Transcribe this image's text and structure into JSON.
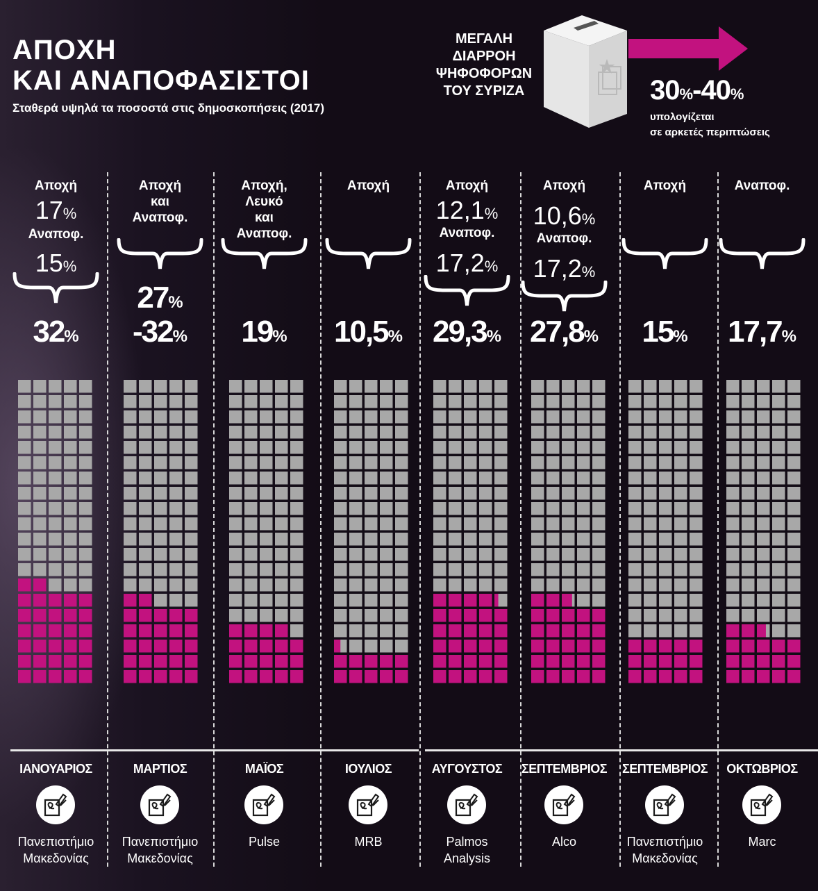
{
  "header": {
    "title_line1": "ΑΠΟΧΗ",
    "title_line2": "ΚΑΙ ΑΝΑΠΟΦΑΣΙΣΤΟΙ",
    "subtitle": "Σταθερά υψηλά τα ποσοστά στις δημοσκοπήσεις (2017)"
  },
  "leak": {
    "line1": "ΜΕΓΑΛΗ",
    "line2": "ΔΙΑΡΡΟΗ",
    "line3": "ΨΗΦΟΦΟΡΩΝ",
    "line4": "ΤΟΥ ΣΥΡΙΖΑ",
    "low": "30",
    "sep": "-",
    "high": "40",
    "pct": "%",
    "note_line1": "υπολογίζεται",
    "note_line2": "σε αρκετές περιπτώσεις"
  },
  "colors": {
    "accent": "#c2127f",
    "empty": "#a8a8a8",
    "background": "#120b14"
  },
  "chart_data": {
    "type": "waffle",
    "cells_per_chart": 100,
    "columns": 5,
    "rows": 20,
    "columns_data": [
      {
        "month": "ΙΑΝΟΥΑΡΙΟΣ",
        "source": [
          "Πανεπιστήμιο",
          "Μακεδονίας"
        ],
        "top": [
          "Αποχή"
        ],
        "sub": [
          {
            "label": "Αποχή",
            "value": "17",
            "pct": "%"
          },
          {
            "label": "Αναποφ.",
            "value": "15",
            "pct": "%"
          }
        ],
        "total_label": "32",
        "value": 32
      },
      {
        "month": "ΜΑΡΤΙΟΣ",
        "source": [
          "Πανεπιστήμιο",
          "Μακεδονίας"
        ],
        "top": [
          "Αποχή",
          "και",
          "Αναποφ."
        ],
        "range_low": "27",
        "total_label": "-32",
        "value": 27
      },
      {
        "month": "ΜΑΪΟΣ",
        "source": [
          "Pulse"
        ],
        "top": [
          "Αποχή,",
          "Λευκό",
          "και",
          "Αναποφ."
        ],
        "total_label": "19",
        "value": 19
      },
      {
        "month": "ΙΟΥΛΙΟΣ",
        "source": [
          "MRB"
        ],
        "top": [
          "Αποχή"
        ],
        "total_label": "10,5",
        "value": 10.5
      },
      {
        "month": "ΑΥΓΟΥΣΤΟΣ",
        "source": [
          "Palmos",
          "Analysis"
        ],
        "top": [
          "Αποχή"
        ],
        "sub_values": [
          {
            "value": "12,1",
            "pct": "%"
          },
          {
            "label": "Αναποφ.",
            "value": "17,2",
            "pct": "%"
          }
        ],
        "total_label": "29,3",
        "value": 29.3
      },
      {
        "month": "ΣΕΠΤΕΜΒΡΙΟΣ",
        "source": [
          "Alco"
        ],
        "top": [
          "Αποχή"
        ],
        "sub_values": [
          {
            "value": "10,6",
            "pct": "%"
          },
          {
            "label": "Αναποφ.",
            "value": "17,2",
            "pct": "%"
          }
        ],
        "total_label": "27,8",
        "value": 27.8
      },
      {
        "month": "ΣΕΠΤΕΜΒΡΙΟΣ",
        "source": [
          "Πανεπιστήμιο",
          "Μακεδονίας"
        ],
        "top": [
          "Αποχή"
        ],
        "total_label": "15",
        "value": 15
      },
      {
        "month": "ΟΚΤΩΒΡΙΟΣ",
        "source": [
          "Marc"
        ],
        "top": [
          "Αναποφ."
        ],
        "total_label": "17,7",
        "value": 17.7
      }
    ],
    "pct": "%"
  }
}
